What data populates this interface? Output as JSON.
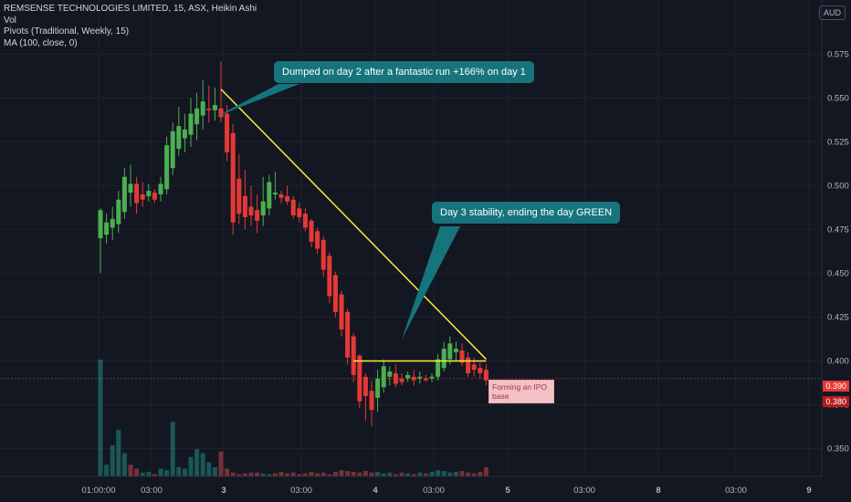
{
  "legend": {
    "title": "REMSENSE TECHNOLOGIES LIMITED, 15, ASX, Heikin Ashi",
    "vol": "Vol",
    "pivots": "Pivots (Traditional, Weekly, 15)",
    "ma": "MA (100, close, 0)"
  },
  "currency": "AUD",
  "callouts": {
    "dump": "Dumped on day 2 after a fantastic run +166% on day 1",
    "stability": "Day 3 stability, ending the day GREEN",
    "ipo_base": "Forming an IPO base"
  },
  "price_tags": {
    "red": "0.390",
    "dark": "0.380"
  },
  "colors": {
    "background": "#131722",
    "up": "#4caf50",
    "down": "#e53935",
    "callout": "#16747c",
    "trendline": "#ffeb3b",
    "pivot": "#8b2a2a"
  },
  "chart_data": {
    "type": "candlestick",
    "chart_style": "Heikin Ashi",
    "symbol": "REMSENSE TECHNOLOGIES LIMITED",
    "interval": "15",
    "exchange": "ASX",
    "y_ticks": [
      "0.575",
      "0.550",
      "0.525",
      "0.500",
      "0.475",
      "0.450",
      "0.425",
      "0.400",
      "0.375",
      "0.350"
    ],
    "ylim": [
      0.343,
      0.584
    ],
    "x_ticks": [
      "01:00:00",
      "03:00",
      "3",
      "03:00",
      "4",
      "03:00",
      "5",
      "03:00",
      "8",
      "03:00",
      "9"
    ],
    "pivot_level": 0.39,
    "candles": [
      {
        "o": 0.47,
        "h": 0.487,
        "l": 0.45,
        "c": 0.486
      },
      {
        "o": 0.472,
        "h": 0.484,
        "l": 0.467,
        "c": 0.479
      },
      {
        "o": 0.476,
        "h": 0.488,
        "l": 0.469,
        "c": 0.481
      },
      {
        "o": 0.478,
        "h": 0.497,
        "l": 0.473,
        "c": 0.492
      },
      {
        "o": 0.485,
        "h": 0.51,
        "l": 0.481,
        "c": 0.505
      },
      {
        "o": 0.496,
        "h": 0.512,
        "l": 0.488,
        "c": 0.501
      },
      {
        "o": 0.501,
        "h": 0.505,
        "l": 0.484,
        "c": 0.49
      },
      {
        "o": 0.495,
        "h": 0.502,
        "l": 0.488,
        "c": 0.492
      },
      {
        "o": 0.494,
        "h": 0.501,
        "l": 0.491,
        "c": 0.497
      },
      {
        "o": 0.496,
        "h": 0.498,
        "l": 0.49,
        "c": 0.492
      },
      {
        "o": 0.495,
        "h": 0.505,
        "l": 0.491,
        "c": 0.501
      },
      {
        "o": 0.498,
        "h": 0.528,
        "l": 0.495,
        "c": 0.523
      },
      {
        "o": 0.51,
        "h": 0.536,
        "l": 0.506,
        "c": 0.531
      },
      {
        "o": 0.521,
        "h": 0.545,
        "l": 0.517,
        "c": 0.534
      },
      {
        "o": 0.527,
        "h": 0.541,
        "l": 0.519,
        "c": 0.532
      },
      {
        "o": 0.529,
        "h": 0.55,
        "l": 0.522,
        "c": 0.541
      },
      {
        "o": 0.535,
        "h": 0.553,
        "l": 0.526,
        "c": 0.544
      },
      {
        "o": 0.54,
        "h": 0.56,
        "l": 0.532,
        "c": 0.548
      },
      {
        "o": 0.544,
        "h": 0.557,
        "l": 0.536,
        "c": 0.543
      },
      {
        "o": 0.543,
        "h": 0.556,
        "l": 0.537,
        "c": 0.546
      },
      {
        "o": 0.544,
        "h": 0.571,
        "l": 0.536,
        "c": 0.539
      },
      {
        "o": 0.541,
        "h": 0.546,
        "l": 0.514,
        "c": 0.519
      },
      {
        "o": 0.53,
        "h": 0.535,
        "l": 0.472,
        "c": 0.479
      },
      {
        "o": 0.504,
        "h": 0.518,
        "l": 0.478,
        "c": 0.484
      },
      {
        "o": 0.494,
        "h": 0.509,
        "l": 0.475,
        "c": 0.482
      },
      {
        "o": 0.488,
        "h": 0.5,
        "l": 0.477,
        "c": 0.483
      },
      {
        "o": 0.486,
        "h": 0.495,
        "l": 0.473,
        "c": 0.48
      },
      {
        "o": 0.483,
        "h": 0.505,
        "l": 0.477,
        "c": 0.491
      },
      {
        "o": 0.487,
        "h": 0.506,
        "l": 0.483,
        "c": 0.502
      },
      {
        "o": 0.495,
        "h": 0.508,
        "l": 0.492,
        "c": 0.496
      },
      {
        "o": 0.495,
        "h": 0.497,
        "l": 0.49,
        "c": 0.493
      },
      {
        "o": 0.494,
        "h": 0.5,
        "l": 0.489,
        "c": 0.491
      },
      {
        "o": 0.492,
        "h": 0.494,
        "l": 0.481,
        "c": 0.483
      },
      {
        "o": 0.487,
        "h": 0.49,
        "l": 0.479,
        "c": 0.482
      },
      {
        "o": 0.484,
        "h": 0.487,
        "l": 0.474,
        "c": 0.476
      },
      {
        "o": 0.48,
        "h": 0.481,
        "l": 0.465,
        "c": 0.468
      },
      {
        "o": 0.474,
        "h": 0.476,
        "l": 0.461,
        "c": 0.464
      },
      {
        "o": 0.469,
        "h": 0.471,
        "l": 0.448,
        "c": 0.452
      },
      {
        "o": 0.46,
        "h": 0.462,
        "l": 0.433,
        "c": 0.437
      },
      {
        "o": 0.449,
        "h": 0.451,
        "l": 0.425,
        "c": 0.428
      },
      {
        "o": 0.438,
        "h": 0.44,
        "l": 0.414,
        "c": 0.418
      },
      {
        "o": 0.428,
        "h": 0.43,
        "l": 0.398,
        "c": 0.402
      },
      {
        "o": 0.414,
        "h": 0.416,
        "l": 0.388,
        "c": 0.392
      },
      {
        "o": 0.403,
        "h": 0.404,
        "l": 0.373,
        "c": 0.377
      },
      {
        "o": 0.391,
        "h": 0.393,
        "l": 0.366,
        "c": 0.38
      },
      {
        "o": 0.383,
        "h": 0.389,
        "l": 0.363,
        "c": 0.372
      },
      {
        "o": 0.379,
        "h": 0.395,
        "l": 0.371,
        "c": 0.39
      },
      {
        "o": 0.385,
        "h": 0.401,
        "l": 0.382,
        "c": 0.397
      },
      {
        "o": 0.391,
        "h": 0.397,
        "l": 0.386,
        "c": 0.394
      },
      {
        "o": 0.393,
        "h": 0.398,
        "l": 0.385,
        "c": 0.387
      },
      {
        "o": 0.39,
        "h": 0.393,
        "l": 0.386,
        "c": 0.388
      },
      {
        "o": 0.39,
        "h": 0.394,
        "l": 0.388,
        "c": 0.392
      },
      {
        "o": 0.391,
        "h": 0.395,
        "l": 0.386,
        "c": 0.389
      },
      {
        "o": 0.39,
        "h": 0.394,
        "l": 0.387,
        "c": 0.391
      },
      {
        "o": 0.39,
        "h": 0.392,
        "l": 0.388,
        "c": 0.389
      },
      {
        "o": 0.39,
        "h": 0.393,
        "l": 0.388,
        "c": 0.391
      },
      {
        "o": 0.391,
        "h": 0.404,
        "l": 0.389,
        "c": 0.401
      },
      {
        "o": 0.396,
        "h": 0.411,
        "l": 0.394,
        "c": 0.407
      },
      {
        "o": 0.401,
        "h": 0.414,
        "l": 0.398,
        "c": 0.41
      },
      {
        "o": 0.405,
        "h": 0.411,
        "l": 0.4,
        "c": 0.407
      },
      {
        "o": 0.406,
        "h": 0.41,
        "l": 0.397,
        "c": 0.399
      },
      {
        "o": 0.402,
        "h": 0.405,
        "l": 0.391,
        "c": 0.393
      },
      {
        "o": 0.398,
        "h": 0.402,
        "l": 0.391,
        "c": 0.395
      },
      {
        "o": 0.396,
        "h": 0.399,
        "l": 0.39,
        "c": 0.393
      },
      {
        "o": 0.395,
        "h": 0.398,
        "l": 0.386,
        "c": 0.389
      }
    ],
    "volume": [
      {
        "v": 150,
        "d": "up"
      },
      {
        "v": 15,
        "d": "up"
      },
      {
        "v": 40,
        "d": "up"
      },
      {
        "v": 60,
        "d": "up"
      },
      {
        "v": 30,
        "d": "up"
      },
      {
        "v": 15,
        "d": "down"
      },
      {
        "v": 10,
        "d": "down"
      },
      {
        "v": 5,
        "d": "up"
      },
      {
        "v": 6,
        "d": "up"
      },
      {
        "v": 3,
        "d": "down"
      },
      {
        "v": 10,
        "d": "up"
      },
      {
        "v": 8,
        "d": "up"
      },
      {
        "v": 70,
        "d": "up"
      },
      {
        "v": 12,
        "d": "up"
      },
      {
        "v": 10,
        "d": "up"
      },
      {
        "v": 25,
        "d": "up"
      },
      {
        "v": 35,
        "d": "up"
      },
      {
        "v": 30,
        "d": "up"
      },
      {
        "v": 18,
        "d": "up"
      },
      {
        "v": 12,
        "d": "up"
      },
      {
        "v": 32,
        "d": "down"
      },
      {
        "v": 10,
        "d": "down"
      },
      {
        "v": 5,
        "d": "down"
      },
      {
        "v": 3,
        "d": "down"
      },
      {
        "v": 4,
        "d": "down"
      },
      {
        "v": 5,
        "d": "down"
      },
      {
        "v": 5,
        "d": "down"
      },
      {
        "v": 4,
        "d": "up"
      },
      {
        "v": 3,
        "d": "up"
      },
      {
        "v": 4,
        "d": "down"
      },
      {
        "v": 6,
        "d": "down"
      },
      {
        "v": 4,
        "d": "down"
      },
      {
        "v": 5,
        "d": "down"
      },
      {
        "v": 3,
        "d": "down"
      },
      {
        "v": 4,
        "d": "down"
      },
      {
        "v": 6,
        "d": "down"
      },
      {
        "v": 4,
        "d": "down"
      },
      {
        "v": 5,
        "d": "down"
      },
      {
        "v": 3,
        "d": "down"
      },
      {
        "v": 6,
        "d": "down"
      },
      {
        "v": 8,
        "d": "down"
      },
      {
        "v": 7,
        "d": "down"
      },
      {
        "v": 6,
        "d": "down"
      },
      {
        "v": 5,
        "d": "down"
      },
      {
        "v": 7,
        "d": "down"
      },
      {
        "v": 5,
        "d": "down"
      },
      {
        "v": 6,
        "d": "up"
      },
      {
        "v": 4,
        "d": "up"
      },
      {
        "v": 5,
        "d": "up"
      },
      {
        "v": 3,
        "d": "down"
      },
      {
        "v": 5,
        "d": "down"
      },
      {
        "v": 4,
        "d": "up"
      },
      {
        "v": 3,
        "d": "down"
      },
      {
        "v": 5,
        "d": "up"
      },
      {
        "v": 4,
        "d": "down"
      },
      {
        "v": 6,
        "d": "up"
      },
      {
        "v": 8,
        "d": "up"
      },
      {
        "v": 7,
        "d": "up"
      },
      {
        "v": 5,
        "d": "up"
      },
      {
        "v": 6,
        "d": "up"
      },
      {
        "v": 7,
        "d": "down"
      },
      {
        "v": 5,
        "d": "down"
      },
      {
        "v": 4,
        "d": "down"
      },
      {
        "v": 6,
        "d": "down"
      },
      {
        "v": 12,
        "d": "down"
      }
    ],
    "annotations": [
      {
        "type": "trendline",
        "from": {
          "candle": 20,
          "price": 0.555
        },
        "to": {
          "candle": 64,
          "price": 0.401
        }
      },
      {
        "type": "horizontal_segment",
        "from": {
          "candle": 42,
          "price": 0.4
        },
        "to": {
          "candle": 64,
          "price": 0.4
        }
      }
    ]
  }
}
